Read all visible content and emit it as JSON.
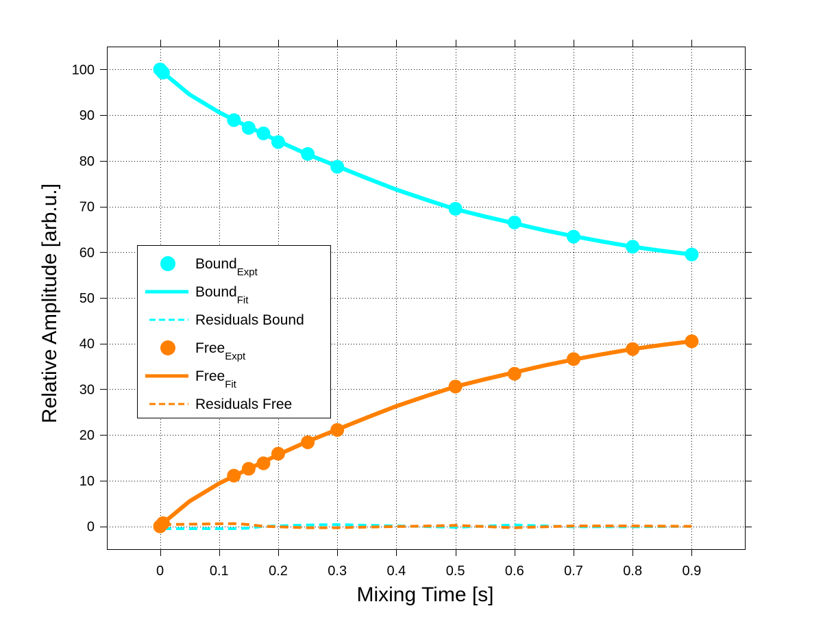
{
  "chart_data": {
    "type": "line",
    "title": "",
    "xlabel": "Mixing Time [s]",
    "ylabel": "Relative Amplitude [arb.u.]",
    "xlim": [
      -0.09,
      0.99
    ],
    "ylim": [
      -5,
      105
    ],
    "xticks": [
      0,
      0.1,
      0.2,
      0.3,
      0.4,
      0.5,
      0.6,
      0.7,
      0.8,
      0.9
    ],
    "xtick_labels": [
      "0",
      "0.1",
      "0.2",
      "0.3",
      "0.4",
      "0.5",
      "0.6",
      "0.7",
      "0.8",
      "0.9"
    ],
    "yticks": [
      0,
      10,
      20,
      30,
      40,
      50,
      60,
      70,
      80,
      90,
      100
    ],
    "ytick_labels": [
      "0",
      "10",
      "20",
      "30",
      "40",
      "50",
      "60",
      "70",
      "80",
      "90",
      "100"
    ],
    "grid": true,
    "grid_style": "dotted",
    "legend_position": "center-left",
    "colors": {
      "bound": "#00ffff",
      "free": "#ff8000",
      "axes": "#000000"
    },
    "series": [
      {
        "name": "Bound_Expt",
        "label_main": "Bound",
        "label_sub": "Expt",
        "style": "markers",
        "color": "#00ffff",
        "x": [
          0,
          0.005,
          0.125,
          0.15,
          0.175,
          0.2,
          0.25,
          0.3,
          0.5,
          0.6,
          0.7,
          0.8,
          0.9
        ],
        "y": [
          100,
          99.3,
          88.9,
          87.2,
          86.0,
          84.1,
          81.5,
          78.7,
          69.5,
          66.5,
          63.4,
          61.2,
          59.5
        ]
      },
      {
        "name": "Bound_Fit",
        "label_main": "Bound",
        "label_sub": "Fit",
        "style": "solid",
        "color": "#00ffff",
        "x": [
          0.005,
          0.05,
          0.1,
          0.125,
          0.15,
          0.175,
          0.2,
          0.25,
          0.3,
          0.35,
          0.4,
          0.45,
          0.5,
          0.55,
          0.6,
          0.65,
          0.7,
          0.75,
          0.8,
          0.85,
          0.9
        ],
        "y": [
          99.3,
          94.5,
          90.6,
          89.0,
          87.4,
          85.9,
          84.3,
          81.4,
          78.8,
          76.2,
          73.7,
          71.5,
          69.4,
          67.8,
          66.3,
          64.8,
          63.5,
          62.3,
          61.2,
          60.3,
          59.5
        ]
      },
      {
        "name": "Residuals Bound",
        "label_main": "Residuals Bound",
        "label_sub": "",
        "style": "dashed",
        "color": "#00ffff",
        "x": [
          0.005,
          0.125,
          0.15,
          0.175,
          0.2,
          0.25,
          0.3,
          0.5,
          0.6,
          0.7,
          0.8,
          0.9
        ],
        "y": [
          -0.5,
          -0.5,
          -0.4,
          0.0,
          0.1,
          0.3,
          0.4,
          -0.2,
          0.3,
          -0.1,
          -0.1,
          0.0
        ]
      },
      {
        "name": "Free_Expt",
        "label_main": "Free",
        "label_sub": "Expt",
        "style": "markers",
        "color": "#ff8000",
        "x": [
          0,
          0.005,
          0.125,
          0.15,
          0.175,
          0.2,
          0.25,
          0.3,
          0.5,
          0.6,
          0.7,
          0.8,
          0.9
        ],
        "y": [
          0,
          0.7,
          11.1,
          12.6,
          13.8,
          15.9,
          18.4,
          21.1,
          30.6,
          33.4,
          36.6,
          38.8,
          40.5
        ]
      },
      {
        "name": "Free_Fit",
        "label_main": "Free",
        "label_sub": "Fit",
        "style": "solid",
        "color": "#ff8000",
        "x": [
          0.005,
          0.05,
          0.1,
          0.125,
          0.15,
          0.175,
          0.2,
          0.25,
          0.3,
          0.35,
          0.4,
          0.45,
          0.5,
          0.55,
          0.6,
          0.65,
          0.7,
          0.75,
          0.8,
          0.85,
          0.9
        ],
        "y": [
          0.7,
          5.5,
          9.4,
          11.0,
          12.6,
          14.1,
          15.7,
          18.6,
          21.2,
          23.8,
          26.3,
          28.5,
          30.6,
          32.2,
          33.7,
          35.2,
          36.5,
          37.7,
          38.8,
          39.7,
          40.5
        ]
      },
      {
        "name": "Residuals Free",
        "label_main": "Residuals Free",
        "label_sub": "",
        "style": "dashed",
        "color": "#ff8000",
        "x": [
          0.005,
          0.125,
          0.15,
          0.175,
          0.2,
          0.25,
          0.3,
          0.5,
          0.6,
          0.7,
          0.8,
          0.9
        ],
        "y": [
          0.4,
          0.6,
          0.4,
          0.0,
          -0.1,
          -0.3,
          -0.3,
          0.2,
          -0.3,
          0.1,
          0.1,
          0.0
        ]
      }
    ]
  }
}
